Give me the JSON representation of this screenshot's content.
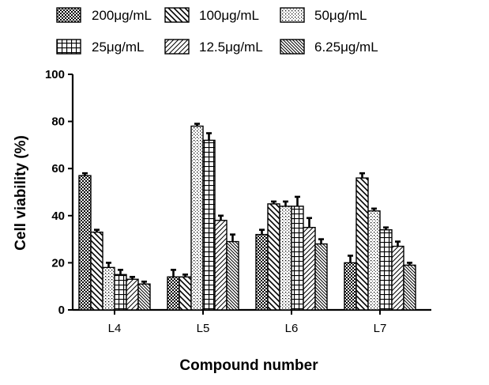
{
  "chart_data": {
    "type": "bar",
    "xlabel": "Compound number",
    "ylabel": "Cell viability (%)",
    "ylim": [
      0,
      100
    ],
    "yticks": [
      0,
      20,
      40,
      60,
      80,
      100
    ],
    "categories": [
      "L4",
      "L5",
      "L6",
      "L7"
    ],
    "legend_position": "top",
    "error_bars": true,
    "series": [
      {
        "name": "200μg/mL",
        "pattern": "crosshatch-fine",
        "values": [
          57,
          14,
          32,
          20
        ],
        "errors": [
          1,
          3,
          2,
          3
        ]
      },
      {
        "name": "100μg/mL",
        "pattern": "diagonal-backslash",
        "values": [
          33,
          14,
          45,
          56
        ],
        "errors": [
          1,
          1,
          1,
          2
        ]
      },
      {
        "name": "50μg/mL",
        "pattern": "dots",
        "values": [
          18,
          78,
          44,
          42
        ],
        "errors": [
          2,
          1,
          2,
          1
        ]
      },
      {
        "name": "25μg/mL",
        "pattern": "grid",
        "values": [
          15,
          72,
          44,
          34
        ],
        "errors": [
          2,
          3,
          4,
          1
        ]
      },
      {
        "name": "12.5μg/mL",
        "pattern": "diagonal-slash",
        "values": [
          13,
          38,
          35,
          27
        ],
        "errors": [
          1,
          2,
          4,
          2
        ]
      },
      {
        "name": "6.25μg/mL",
        "pattern": "diagonal-backslash-dense",
        "values": [
          11,
          29,
          28,
          19
        ],
        "errors": [
          1,
          3,
          2,
          1
        ]
      }
    ]
  }
}
